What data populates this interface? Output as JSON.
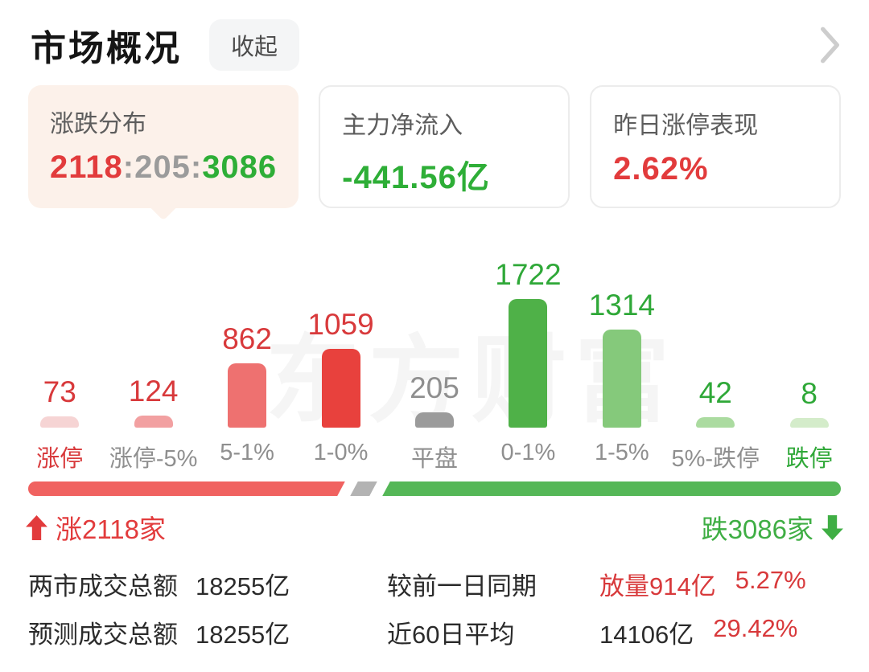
{
  "header": {
    "title": "市场概况",
    "collapse_label": "收起"
  },
  "cards": [
    {
      "label": "涨跌分布",
      "value_parts": [
        {
          "text": "2118",
          "color": "#e23b3c"
        },
        {
          "text": ":",
          "color": "#9b9b9b"
        },
        {
          "text": "205",
          "color": "#9b9b9b"
        },
        {
          "text": ":",
          "color": "#9b9b9b"
        },
        {
          "text": "3086",
          "color": "#2eae37"
        }
      ]
    },
    {
      "label": "主力净流入",
      "value": "-441.56亿",
      "value_color": "#2eae37"
    },
    {
      "label": "昨日涨停表现",
      "value": "2.62%",
      "value_color": "#e23b3c"
    }
  ],
  "chart_data": {
    "type": "bar",
    "title": "涨跌分布",
    "categories": [
      "涨停",
      "涨停-5%",
      "5-1%",
      "1-0%",
      "平盘",
      "0-1%",
      "1-5%",
      "5%-跌停",
      "跌停"
    ],
    "values": [
      73,
      124,
      862,
      1059,
      205,
      1722,
      1314,
      42,
      8
    ],
    "bar_colors": [
      "#f6d4d4",
      "#f2a0a1",
      "#ee7170",
      "#e8413d",
      "#9b9b9b",
      "#4fb148",
      "#85c97b",
      "#abdba0",
      "#d4ecca"
    ],
    "value_colors": [
      "#d8393b",
      "#d8393b",
      "#d8393b",
      "#d8393b",
      "#8f8f8f",
      "#2fa838",
      "#2fa838",
      "#2fa838",
      "#2fa838"
    ],
    "label_colors": [
      "#d8393b",
      "#8f8f8f",
      "#8f8f8f",
      "#8f8f8f",
      "#8f8f8f",
      "#8f8f8f",
      "#8f8f8f",
      "#8f8f8f",
      "#2fa838"
    ],
    "ylim": [
      0,
      1722
    ],
    "grid": false,
    "legend": false,
    "watermark": "东方财富"
  },
  "ratio_bar": {
    "up_count": 2118,
    "flat_count": 205,
    "down_count": 3086,
    "up_color": "#f06260",
    "flat_color": "#b3b3b3",
    "down_color": "#55b757"
  },
  "updown": {
    "up_label": "涨2118家",
    "down_label": "跌3086家",
    "up_color": "#e23b3c",
    "down_color": "#3fae44"
  },
  "stats": {
    "rows": [
      {
        "label1": "两市成交总额",
        "value1": "18255亿",
        "label2": "较前一日同期",
        "value2_parts": [
          {
            "text": "放量914亿",
            "color": "#d8393b"
          },
          {
            "text": "5.27%",
            "color": "#d8393b"
          }
        ]
      },
      {
        "label1": "预测成交总额",
        "value1": "18255亿",
        "label2": "近60日平均",
        "value2_parts": [
          {
            "text": "14106亿",
            "color": "#2b2b2b"
          },
          {
            "text": "29.42%",
            "color": "#d8393b"
          }
        ]
      }
    ]
  }
}
